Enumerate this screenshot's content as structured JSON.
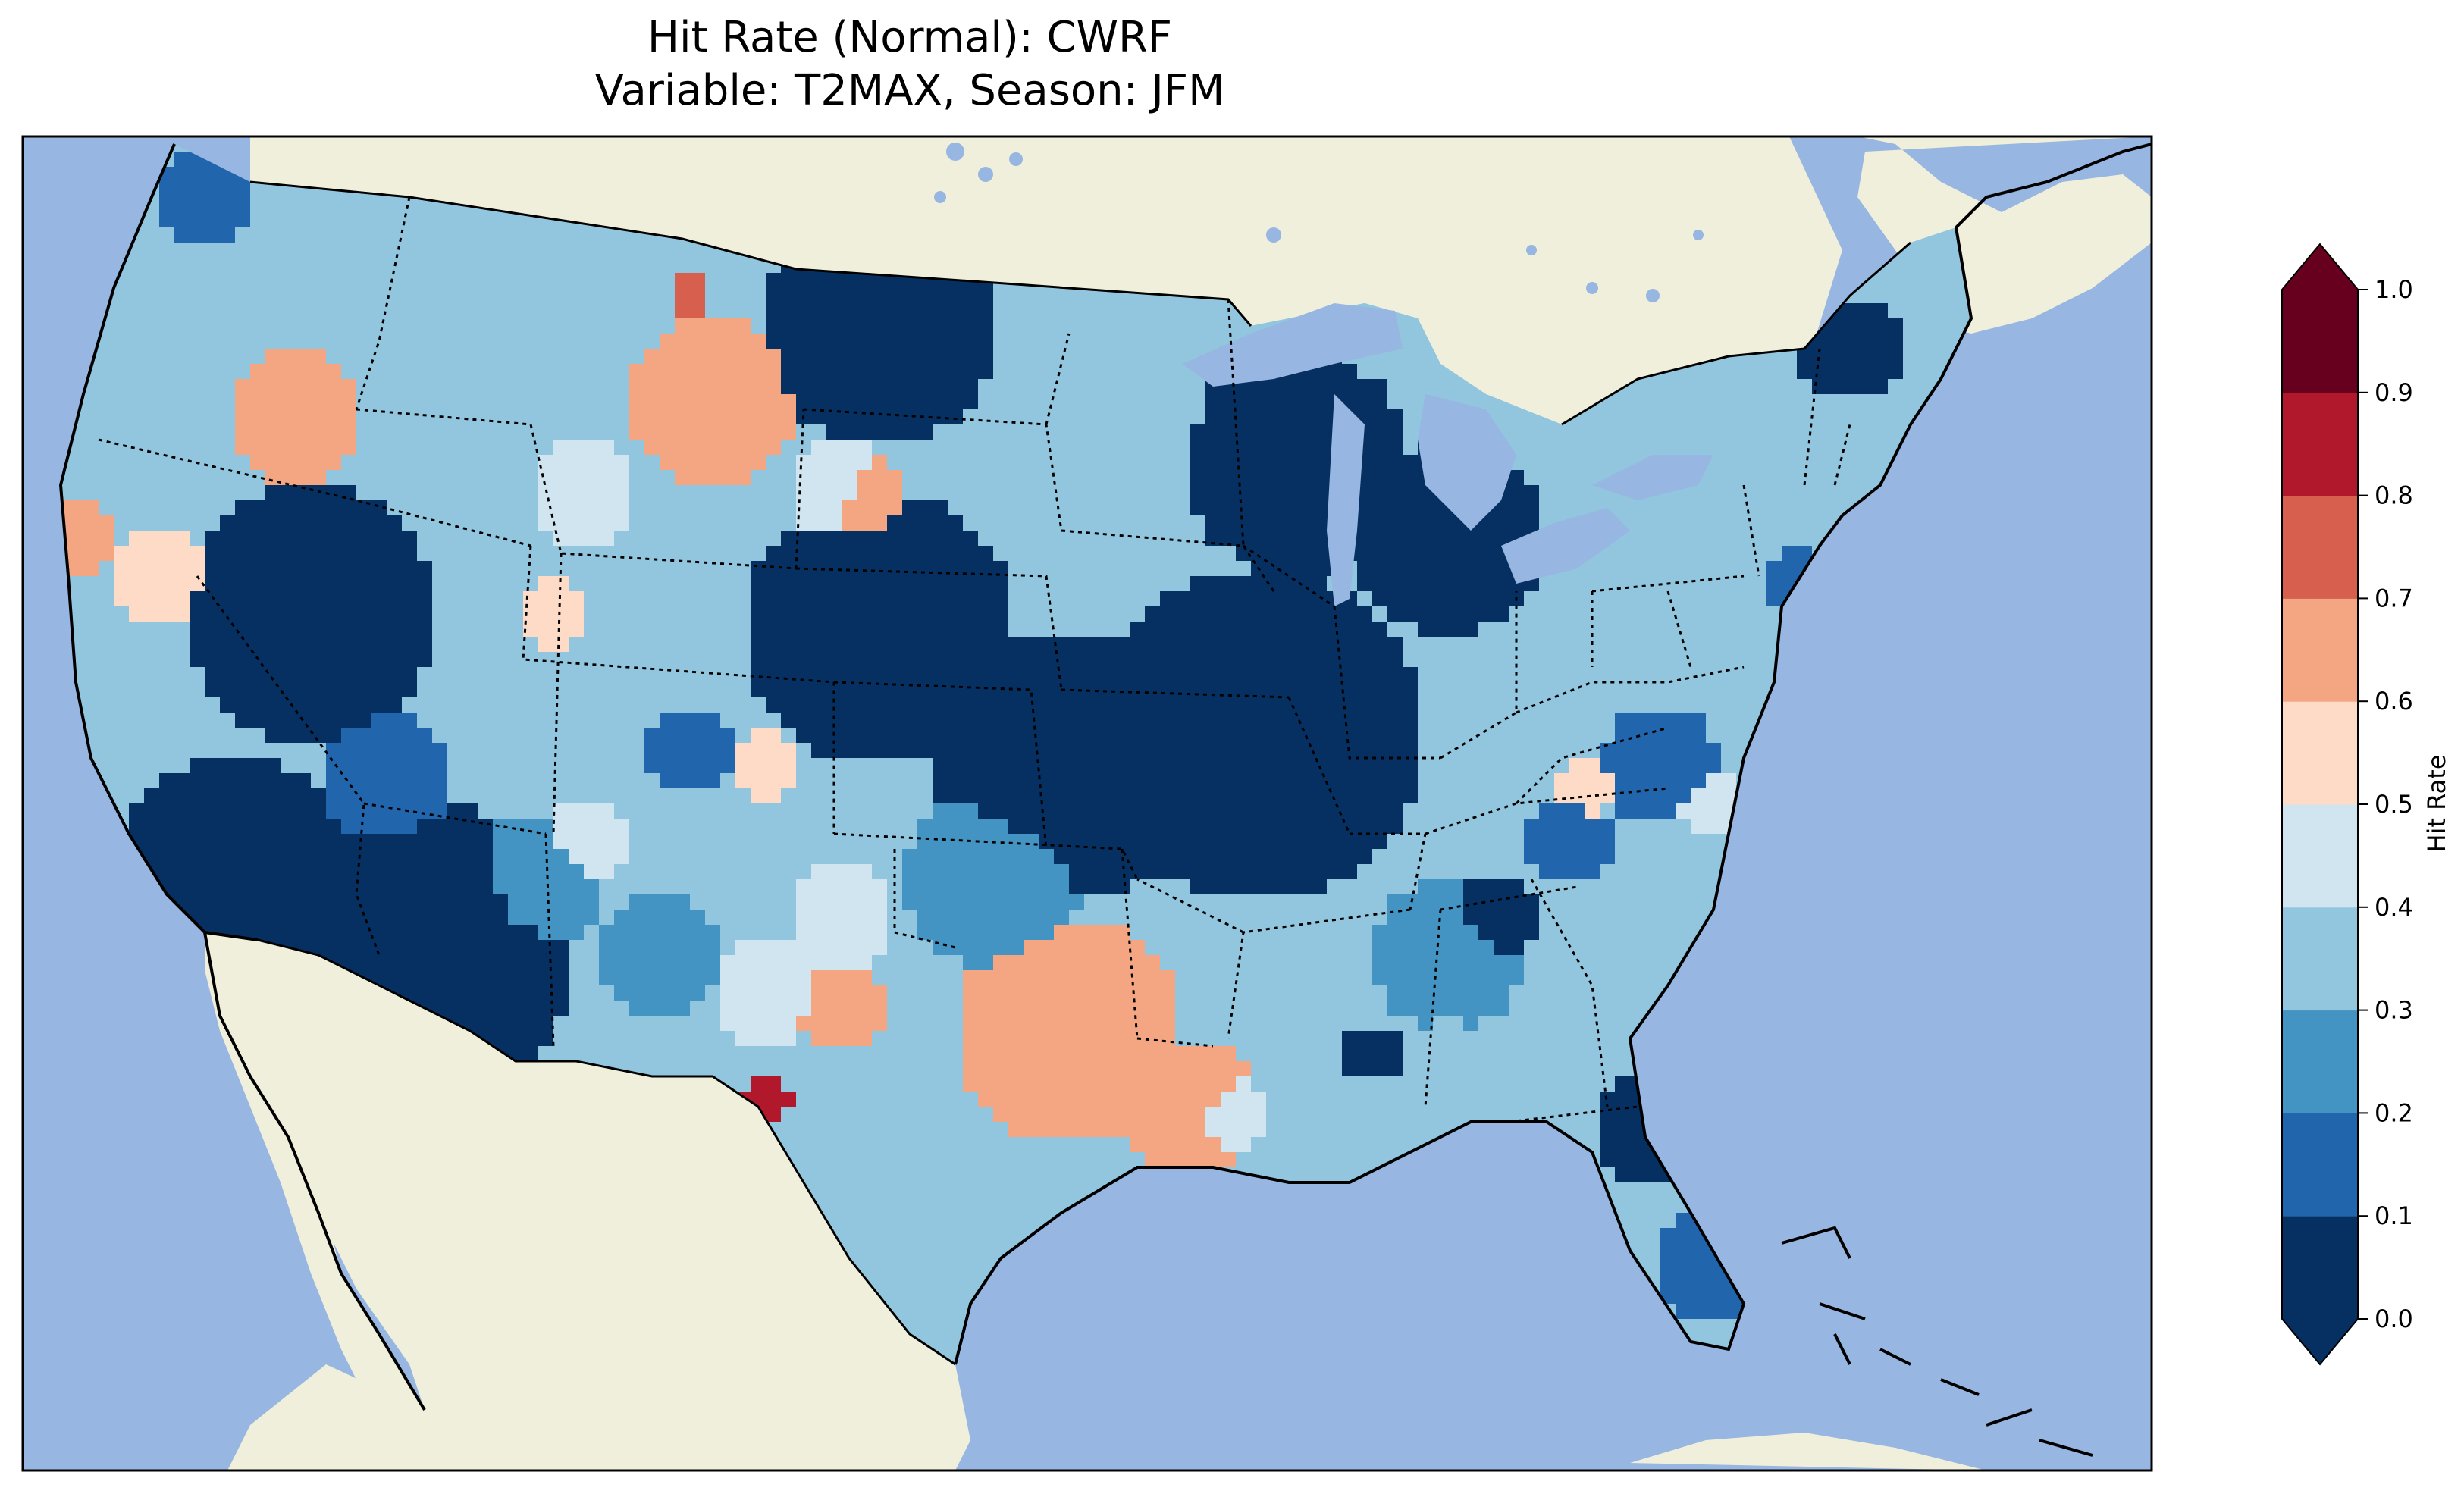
{
  "title_line1": "Hit Rate (Normal): CWRF",
  "title_line2": "Variable: T2MAX, Season: JFM",
  "colorbar": {
    "label": "Hit Rate",
    "ticks": [
      "0.0",
      "0.1",
      "0.2",
      "0.3",
      "0.4",
      "0.5",
      "0.6",
      "0.7",
      "0.8",
      "0.9",
      "1.0"
    ],
    "colors": [
      "#053061",
      "#2166ac",
      "#4393c3",
      "#92c5de",
      "#d1e5f0",
      "#fddbc7",
      "#f4a582",
      "#d6604d",
      "#b2182b",
      "#67001f"
    ],
    "extend": "both"
  },
  "map_colors": {
    "ocean": "#97b6e1",
    "land": "#efefdb",
    "lakes": "#97b6e1"
  }
}
